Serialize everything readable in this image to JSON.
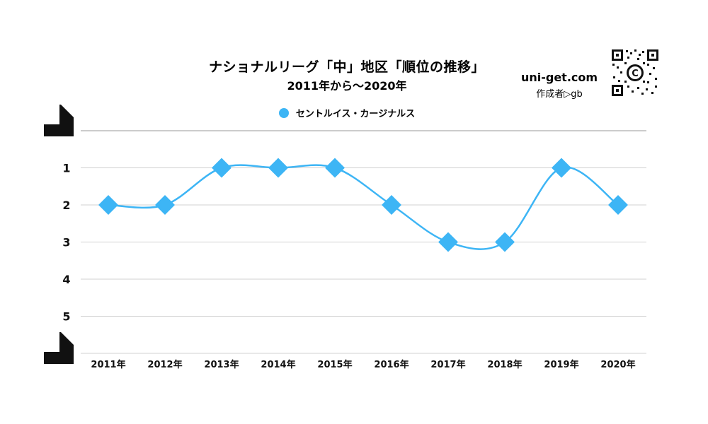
{
  "header": {
    "title": "ナショナルリーグ「中」地区「順位の推移」",
    "subtitle": "2011年から～2020年"
  },
  "watermark": {
    "site": "uni-get.com",
    "author": "作成者▷gb",
    "qr_badge": "C"
  },
  "legend": {
    "label": "セントルイス・カージナルス",
    "color": "#3db5f5"
  },
  "colors": {
    "series": "#3db5f5",
    "grid": "#d0d0d0",
    "axis_top": "#999999"
  },
  "chart_data": {
    "type": "line",
    "title": "ナショナルリーグ「中」地区「順位の推移」",
    "subtitle": "2011年から～2020年",
    "categories": [
      "2011年",
      "2012年",
      "2013年",
      "2014年",
      "2015年",
      "2016年",
      "2017年",
      "2018年",
      "2019年",
      "2020年"
    ],
    "series": [
      {
        "name": "セントルイス・カージナルス",
        "values": [
          2,
          2,
          1,
          1,
          1,
          2,
          3,
          3,
          1,
          2
        ]
      }
    ],
    "yticks": [
      1,
      2,
      3,
      4,
      5
    ],
    "ylim": [
      0,
      6
    ],
    "y_reversed": true,
    "grid": true,
    "legend_position": "top",
    "marker": "diamond",
    "smooth": true
  }
}
